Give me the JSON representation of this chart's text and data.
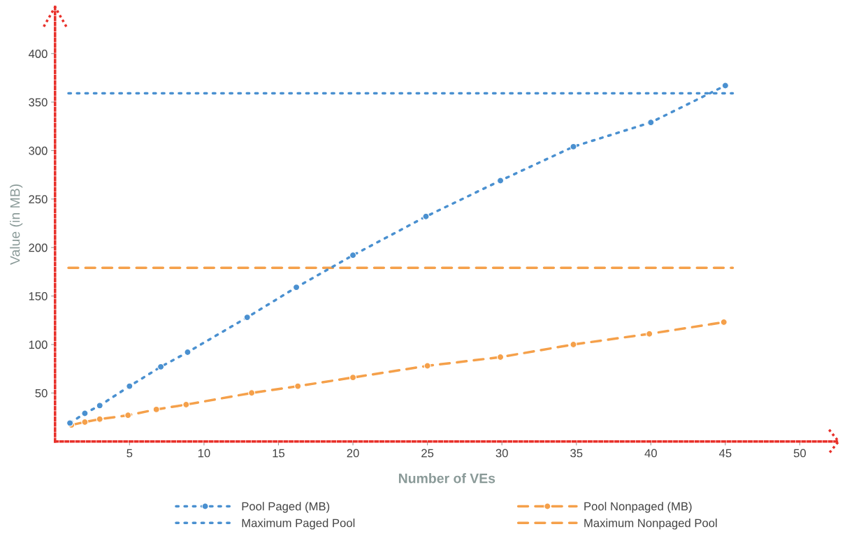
{
  "chart_data": {
    "type": "line",
    "xlabel": "Number of VEs",
    "ylabel": "Value (in MB)",
    "xlim": [
      0,
      52.6
    ],
    "ylim": [
      0,
      448
    ],
    "xticks": [
      5,
      10,
      15,
      20,
      25,
      30,
      35,
      40,
      45,
      50
    ],
    "yticks": [
      50,
      100,
      150,
      200,
      250,
      300,
      350,
      400
    ],
    "grid": false,
    "legend": "bottom",
    "series": [
      {
        "name": "Pool Paged (MB)",
        "color": "#4a90d0",
        "marker": "circle",
        "line_style": "dotted",
        "x": [
          1,
          2,
          3,
          5,
          7.1,
          8.9,
          12.9,
          16.2,
          20,
          24.9,
          29.9,
          34.8,
          40,
          45
        ],
        "values": [
          19,
          29,
          37,
          57,
          77,
          92,
          128,
          159,
          192,
          232,
          269,
          304,
          329,
          367
        ]
      },
      {
        "name": "Maximum Paged Pool",
        "color": "#4a90d0",
        "marker": "none",
        "line_style": "dotted",
        "x": [
          0.9,
          45.5
        ],
        "values": [
          359,
          359
        ]
      },
      {
        "name": "Pool Nonpaged (MB)",
        "color": "#f5a04a",
        "marker": "circle",
        "line_style": "dashed",
        "x": [
          1.1,
          2,
          3,
          4.9,
          6.8,
          8.8,
          13.2,
          16.3,
          20,
          25,
          29.9,
          34.8,
          39.9,
          44.9
        ],
        "values": [
          17,
          20,
          23,
          27,
          33,
          38,
          50,
          57,
          66,
          78,
          87,
          100,
          111,
          123
        ]
      },
      {
        "name": "Maximum Nonpaged Pool",
        "color": "#f5a04a",
        "marker": "none",
        "line_style": "dashed",
        "x": [
          0.9,
          45.5
        ],
        "values": [
          179,
          179
        ]
      }
    ]
  }
}
